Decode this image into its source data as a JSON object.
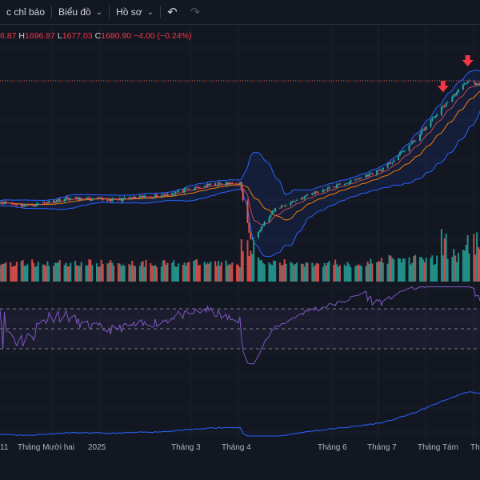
{
  "toolbar": {
    "indicators_label": "c chỉ báo",
    "chart_label": "Biểu đồ",
    "profile_label": "Hồ sơ"
  },
  "ohlc": {
    "open_value": "6.87",
    "high_label": "H",
    "high_value": "1696.87",
    "low_label": "L",
    "low_value": "1677.03",
    "close_label": "C",
    "close_value": "1680.90",
    "change": "−4.00 (−0.24%)"
  },
  "colors": {
    "background": "#131722",
    "up": "#26a69a",
    "down": "#ef5350",
    "bollinger": "#2962ff",
    "ma": "#f57c00",
    "rsi": "#7e57c2",
    "lower_line": "#2962ff"
  },
  "icons": [
    "chevron-down-icon",
    "undo-icon",
    "redo-icon",
    "sell-arrow-icon"
  ],
  "x_axis": {
    "labels": [
      "11",
      "Tháng Mười hai",
      "2025",
      "Tháng 3",
      "Tháng 4",
      "Tháng 6",
      "Tháng 7",
      "Tháng Tám",
      "Th"
    ]
  },
  "chart_data": {
    "type": "line",
    "title": "",
    "xlabel": "",
    "ylabel": "",
    "price_anchors": [
      {
        "date": "2024-10-25",
        "close": 1252
      },
      {
        "date": "2024-11-15",
        "close": 1236
      },
      {
        "date": "2024-12-10",
        "close": 1264
      },
      {
        "date": "2025-01-10",
        "close": 1258
      },
      {
        "date": "2025-02-10",
        "close": 1276
      },
      {
        "date": "2025-03-15",
        "close": 1315
      },
      {
        "date": "2025-04-02",
        "close": 1320
      },
      {
        "date": "2025-04-09",
        "close": 1110
      },
      {
        "date": "2025-04-25",
        "close": 1225
      },
      {
        "date": "2025-05-20",
        "close": 1285
      },
      {
        "date": "2025-06-15",
        "close": 1330
      },
      {
        "date": "2025-07-05",
        "close": 1375
      },
      {
        "date": "2025-07-25",
        "close": 1480
      },
      {
        "date": "2025-08-10",
        "close": 1590
      },
      {
        "date": "2025-08-28",
        "close": 1697
      },
      {
        "date": "2025-09-05",
        "close": 1681
      }
    ],
    "sell_signals": [
      "2025-08-12",
      "2025-08-28"
    ],
    "last_high": 1696.87,
    "last_low": 1677.03,
    "last_close": 1680.9,
    "rsi_levels": [
      70,
      50,
      30
    ],
    "indicators": [
      "Bollinger Bands",
      "Moving Average",
      "Volume",
      "RSI"
    ],
    "grid": true
  }
}
